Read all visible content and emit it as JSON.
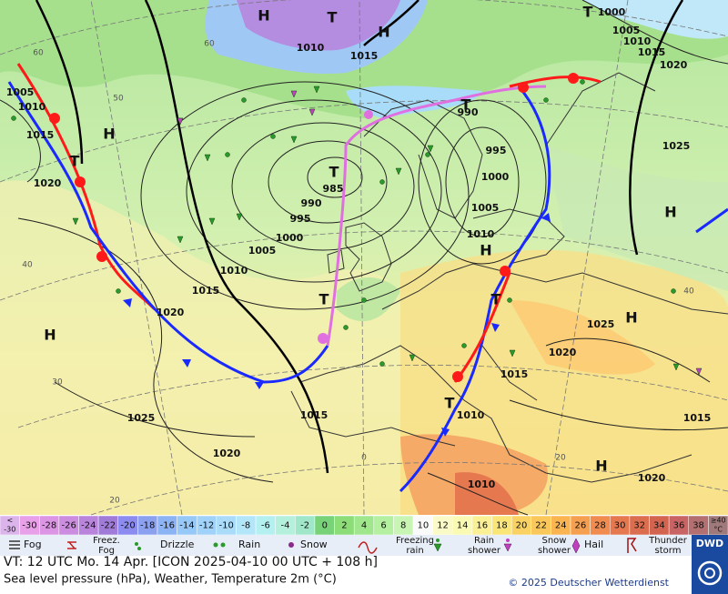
{
  "map": {
    "isobar_labels": [
      "1005",
      "1010",
      "1015",
      "1020",
      "1010",
      "1015",
      "1000",
      "1005",
      "1010",
      "1015",
      "1020",
      "1025",
      "990",
      "995",
      "1000",
      "1005",
      "1010",
      "985",
      "990",
      "995",
      "1000",
      "1005",
      "1010",
      "1015",
      "1020",
      "1025",
      "1020",
      "1015",
      "1015",
      "1020",
      "1025",
      "1015",
      "1020",
      "1010",
      "1010"
    ],
    "centers": [
      "H",
      "H",
      "H",
      "H",
      "H",
      "H",
      "H",
      "H",
      "T",
      "T",
      "T",
      "T",
      "T",
      "T",
      "T",
      "T"
    ],
    "graticule": [
      "60",
      "50",
      "40",
      "30",
      "20",
      "0",
      "20",
      "40",
      "60"
    ]
  },
  "scale": {
    "first_label": [
      "<",
      "-30"
    ],
    "values": [
      "-30",
      "-28",
      "-26",
      "-24",
      "-22",
      "-20",
      "-18",
      "-16",
      "-14",
      "-12",
      "-10",
      "-8",
      "-6",
      "-4",
      "-2",
      "0",
      "2",
      "4",
      "6",
      "8",
      "10",
      "12",
      "14",
      "16",
      "18",
      "20",
      "22",
      "24",
      "26",
      "28",
      "30",
      "32",
      "34",
      "36",
      "38"
    ],
    "last_label": [
      "≥40",
      "°C"
    ],
    "colors": [
      "#dcb4ec",
      "#e8a0e8",
      "#dc94e4",
      "#cc8ce0",
      "#b884dc",
      "#a07cd8",
      "#8c8cf0",
      "#8ca0f0",
      "#8cb4f5",
      "#96c8f8",
      "#a0d2fa",
      "#aadcfa",
      "#b4e6fa",
      "#b4f0f0",
      "#b4f0dc",
      "#a0e6c8",
      "#78d278",
      "#8cdc78",
      "#a0e68c",
      "#b4f0a0",
      "#c8f5b4",
      "#fafafa",
      "#fafac8",
      "#fafab4",
      "#faf096",
      "#fae678",
      "#fad264",
      "#fac85a",
      "#fab450",
      "#f5a050",
      "#f08c50",
      "#e67850",
      "#dc6e50",
      "#d26450",
      "#c86464",
      "#b47070",
      "#a07a7a"
    ]
  },
  "legend": [
    [
      "Fog"
    ],
    [
      "Freez.",
      "Fog"
    ],
    [
      "Drizzle"
    ],
    [
      "Rain"
    ],
    [
      "Snow"
    ],
    [
      "Freezing",
      "rain"
    ],
    [
      "Rain",
      "shower"
    ],
    [
      "Snow",
      "shower"
    ],
    [
      "Hail"
    ],
    [
      "Thunder",
      "storm"
    ]
  ],
  "footer": {
    "valid_time": "VT: 12 UTC Mo.  14 Apr. [ICON 2025-04-10  00 UTC + 108 h]",
    "description": "Sea level pressure (hPa), Weather, Temperature 2m (°C)",
    "copyright": "© 2025 Deutscher Wetterdienst",
    "logo": "DWD"
  }
}
